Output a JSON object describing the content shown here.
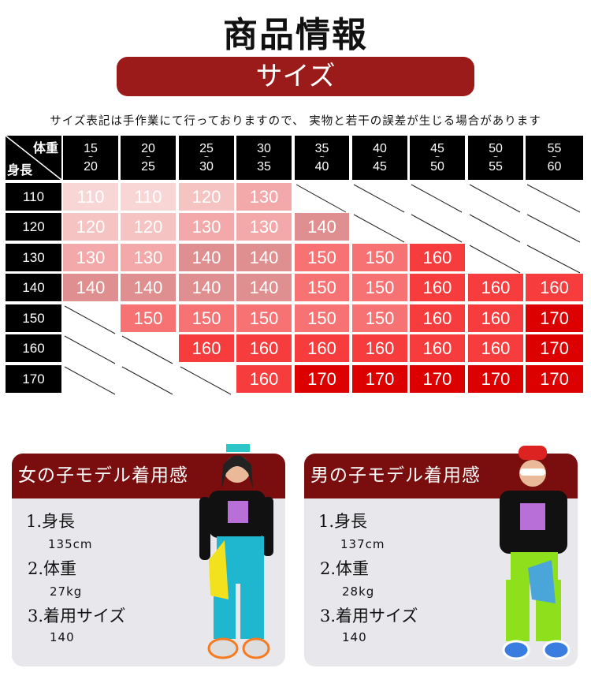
{
  "title": "商品情報",
  "section_label": "サイズ",
  "note": "サイズ表記は手作業にて行っておりますので、 実物と若干の誤差が生じる場合があります",
  "table": {
    "corner_weight": "体重",
    "corner_height": "身長",
    "weight_ranges": [
      [
        "15",
        "20"
      ],
      [
        "20",
        "25"
      ],
      [
        "25",
        "30"
      ],
      [
        "30",
        "35"
      ],
      [
        "35",
        "40"
      ],
      [
        "40",
        "45"
      ],
      [
        "45",
        "50"
      ],
      [
        "50",
        "55"
      ],
      [
        "55",
        "60"
      ]
    ],
    "tilde": "~",
    "heights": [
      "110",
      "120",
      "130",
      "140",
      "150",
      "160",
      "170"
    ],
    "rows": [
      [
        "110",
        "110",
        "120",
        "130",
        null,
        null,
        null,
        null,
        null
      ],
      [
        "120",
        "120",
        "130",
        "130",
        "140",
        null,
        null,
        null,
        null
      ],
      [
        "130",
        "130",
        "140",
        "140",
        "150",
        "150",
        "160",
        null,
        null
      ],
      [
        "140",
        "140",
        "140",
        "140",
        "150",
        "150",
        "160",
        "160",
        "160"
      ],
      [
        null,
        "150",
        "150",
        "150",
        "150",
        "150",
        "160",
        "160",
        "170"
      ],
      [
        null,
        null,
        "160",
        "160",
        "160",
        "160",
        "160",
        "160",
        "170"
      ],
      [
        null,
        null,
        null,
        "160",
        "170",
        "170",
        "170",
        "170",
        "170"
      ]
    ],
    "size_colors": {
      "110": "#f9d6d6",
      "120": "#f6c3c3",
      "130": "#f3a9a9",
      "140": "#df8f8f",
      "150": "#f77272",
      "160": "#f63c3c",
      "170": "#dc0000"
    }
  },
  "girl": {
    "heading": "女の子モデル着用感",
    "items": [
      {
        "label": "1.身長",
        "value": "135cm"
      },
      {
        "label": "2.体重",
        "value": "27kg"
      },
      {
        "label": "3.着用サイズ",
        "value": "140"
      }
    ]
  },
  "boy": {
    "heading": "男の子モデル着用感",
    "items": [
      {
        "label": "1.身長",
        "value": "137cm"
      },
      {
        "label": "2.体重",
        "value": "28kg"
      },
      {
        "label": "3.着用サイズ",
        "value": "140"
      }
    ]
  }
}
